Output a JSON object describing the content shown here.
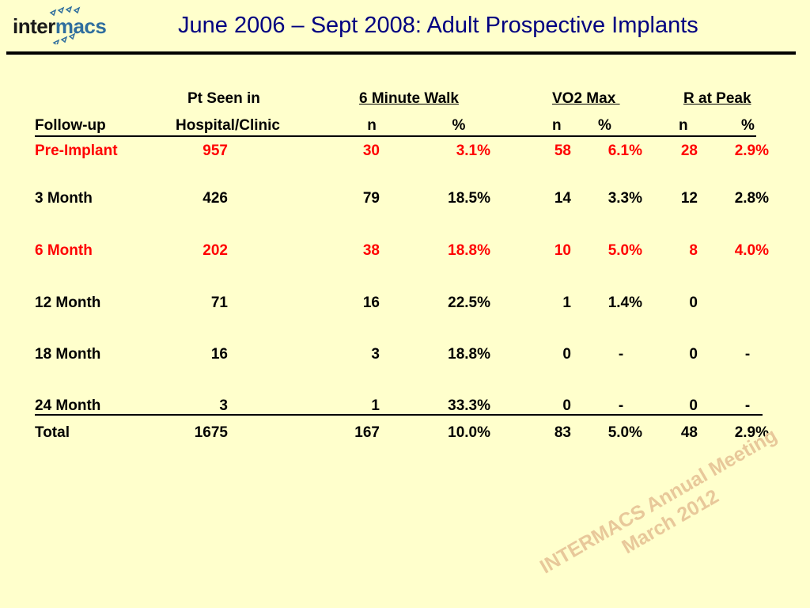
{
  "logo": {
    "part1": "inter",
    "part2": "macs"
  },
  "title": "June 2006 – Sept 2008:  Adult Prospective Implants",
  "header": {
    "pt_seen_line1": "Pt Seen in",
    "walk": "6 Minute Walk",
    "vo2": "VO2 Max ",
    "rpeak": "R at Peak",
    "followup": "Follow-up",
    "pt_seen_line2": "Hospital/Clinic",
    "walk_n": "n",
    "walk_pct": "%",
    "vo2_n": "n",
    "vo2_pct": "%",
    "rpeak_n": "n",
    "rpeak_pct": "%"
  },
  "rows": [
    {
      "label": "Pre-Implant",
      "seen": "957",
      "walk_n": "30",
      "walk_pct": "3.1%",
      "vo2_n": "58",
      "vo2_pct": "6.1%",
      "rp_n": "28",
      "rp_pct": "2.9%"
    },
    {
      "label": "3 Month",
      "seen": "426",
      "walk_n": "79",
      "walk_pct": "18.5%",
      "vo2_n": "14",
      "vo2_pct": "3.3%",
      "rp_n": "12",
      "rp_pct": "2.8%"
    },
    {
      "label": "6 Month",
      "seen": "202",
      "walk_n": "38",
      "walk_pct": "18.8%",
      "vo2_n": "10",
      "vo2_pct": "5.0%",
      "rp_n": "8",
      "rp_pct": "4.0%"
    },
    {
      "label": "12 Month",
      "seen": "71",
      "walk_n": "16",
      "walk_pct": "22.5%",
      "vo2_n": "1",
      "vo2_pct": "1.4%",
      "rp_n": "0",
      "rp_pct": ""
    },
    {
      "label": "18 Month",
      "seen": "16",
      "walk_n": "3",
      "walk_pct": "18.8%",
      "vo2_n": "0",
      "vo2_pct": "-",
      "rp_n": "0",
      "rp_pct": "-"
    },
    {
      "label": "24 Month",
      "seen": "3",
      "walk_n": "1",
      "walk_pct": "33.3%",
      "vo2_n": "0",
      "vo2_pct": "-",
      "rp_n": "0",
      "rp_pct": "-"
    },
    {
      "label": "Total",
      "seen": "1675",
      "walk_n": "167",
      "walk_pct": "10.0%",
      "vo2_n": "83",
      "vo2_pct": "5.0%",
      "rp_n": "48",
      "rp_pct": "2.9%"
    }
  ],
  "watermark": {
    "line1": "INTERMACS Annual Meeting",
    "line2": "March 2012"
  },
  "colors": {
    "background": "#FFFFCC",
    "title": "#000080",
    "highlight": "#FF0000",
    "logo_accent": "#2F6E9E",
    "watermark": "#E8C89A"
  }
}
